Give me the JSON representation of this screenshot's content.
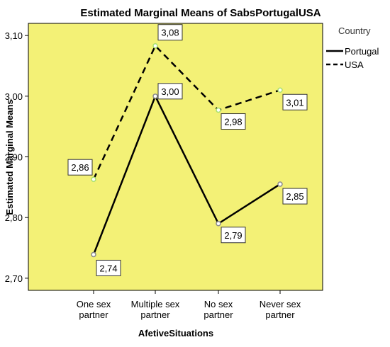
{
  "chart_data": {
    "type": "line",
    "title": "Estimated Marginal Means of SabsPortugalUSA",
    "xlabel": "AfetiveSituations",
    "ylabel": "Estimated Marginal Means",
    "categories": [
      [
        "One sex",
        "partner"
      ],
      [
        "Multiple sex",
        "partner"
      ],
      [
        "No sex",
        "partner"
      ],
      [
        "Never sex",
        "partner"
      ]
    ],
    "ylim": [
      2.68,
      3.12
    ],
    "yticks": [
      2.7,
      2.8,
      2.9,
      3.0,
      3.1
    ],
    "ytick_labels": [
      "2,70",
      "2,80",
      "2,90",
      "3,00",
      "3,10"
    ],
    "legend_title": "Country",
    "legend_position": "right",
    "plot_background": "#f3f176",
    "series": [
      {
        "name": "Portugal",
        "values": [
          2.739,
          3.0,
          2.79,
          2.855
        ],
        "labels": [
          "2,74",
          "3,00",
          "2,79",
          "2,85"
        ],
        "dash": "solid",
        "marker_color": "#8a8a8a"
      },
      {
        "name": "USA",
        "values": [
          2.863,
          3.083,
          2.977,
          3.01
        ],
        "labels": [
          "2,86",
          "3,08",
          "2,98",
          "3,01"
        ],
        "dash": "dashed",
        "marker_color": "#a8e070"
      }
    ]
  }
}
